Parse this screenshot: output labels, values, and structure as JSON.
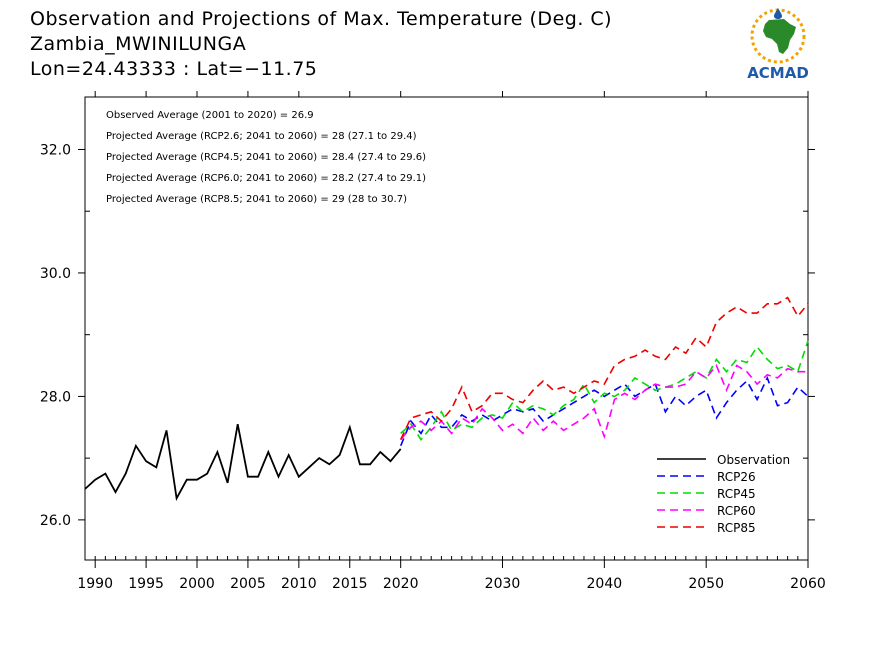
{
  "title": {
    "line1": "Observation and Projections of Max. Temperature (Deg. C)",
    "line2": "Zambia_MWINILUNGA",
    "line3": "Lon=24.43333 : Lat=−11.75"
  },
  "logo": {
    "text": "ACMAD",
    "icon": "africa-map-logo-icon"
  },
  "annotations": [
    "Observed Average (2001 to 2020) = 26.9",
    "Projected Average (RCP2.6; 2041 to 2060) = 28 (27.1 to 29.4)",
    "Projected Average (RCP4.5; 2041 to 2060) = 28.4 (27.4 to 29.6)",
    "Projected Average (RCP6.0; 2041 to 2060) = 28.2 (27.4 to 29.1)",
    "Projected Average (RCP8.5; 2041 to 2060) = 29 (28 to 30.7)"
  ],
  "chart_data": {
    "type": "line",
    "xlim": [
      1989,
      2060
    ],
    "ylim": [
      25.35,
      32.85
    ],
    "xticks": [
      1990,
      1995,
      2000,
      2005,
      2010,
      2015,
      2020,
      2030,
      2040,
      2050,
      2060
    ],
    "yticks": [
      26.0,
      28.0,
      30.0,
      32.0
    ],
    "ytick_labels": [
      "26.0",
      "28.0",
      "30.0",
      "32.0"
    ],
    "legend_position": "bottom-right",
    "series": [
      {
        "name": "Observation",
        "color": "#000000",
        "dashed": false,
        "x": [
          1989,
          1990,
          1991,
          1992,
          1993,
          1994,
          1995,
          1996,
          1997,
          1998,
          1999,
          2000,
          2001,
          2002,
          2003,
          2004,
          2005,
          2006,
          2007,
          2008,
          2009,
          2010,
          2011,
          2012,
          2013,
          2014,
          2015,
          2016,
          2017,
          2018,
          2019,
          2020
        ],
        "y": [
          26.5,
          26.65,
          26.75,
          26.45,
          26.75,
          27.2,
          26.95,
          26.85,
          27.45,
          26.35,
          26.65,
          26.65,
          26.75,
          27.1,
          26.6,
          27.55,
          26.7,
          26.7,
          27.1,
          26.7,
          27.05,
          26.7,
          26.85,
          27.0,
          26.9,
          27.05,
          27.5,
          26.9,
          26.9,
          27.1,
          26.95,
          27.15
        ]
      },
      {
        "name": "RCP26",
        "color": "#0000ff",
        "dashed": true,
        "x": [
          2020,
          2021,
          2022,
          2023,
          2024,
          2025,
          2026,
          2027,
          2028,
          2029,
          2030,
          2031,
          2032,
          2033,
          2034,
          2035,
          2036,
          2037,
          2038,
          2039,
          2040,
          2041,
          2042,
          2043,
          2044,
          2045,
          2046,
          2047,
          2048,
          2049,
          2050,
          2051,
          2052,
          2053,
          2054,
          2055,
          2056,
          2057,
          2058,
          2059,
          2060
        ],
        "y": [
          27.2,
          27.6,
          27.4,
          27.7,
          27.5,
          27.5,
          27.7,
          27.6,
          27.7,
          27.6,
          27.7,
          27.8,
          27.75,
          27.8,
          27.6,
          27.7,
          27.8,
          27.9,
          28.0,
          28.1,
          28.0,
          28.1,
          28.2,
          28.0,
          28.1,
          28.2,
          27.75,
          28.0,
          27.85,
          28.0,
          28.1,
          27.65,
          27.9,
          28.1,
          28.25,
          27.95,
          28.3,
          27.85,
          27.9,
          28.15,
          28.0
        ]
      },
      {
        "name": "RCP45",
        "color": "#00dd00",
        "dashed": true,
        "x": [
          2020,
          2021,
          2022,
          2023,
          2024,
          2025,
          2026,
          2027,
          2028,
          2029,
          2030,
          2031,
          2032,
          2033,
          2034,
          2035,
          2036,
          2037,
          2038,
          2039,
          2040,
          2041,
          2042,
          2043,
          2044,
          2045,
          2046,
          2047,
          2048,
          2049,
          2050,
          2051,
          2052,
          2053,
          2054,
          2055,
          2056,
          2057,
          2058,
          2059,
          2060
        ],
        "y": [
          27.4,
          27.55,
          27.3,
          27.5,
          27.75,
          27.45,
          27.55,
          27.5,
          27.65,
          27.7,
          27.65,
          27.9,
          27.75,
          27.85,
          27.8,
          27.7,
          27.85,
          27.95,
          28.2,
          27.9,
          28.05,
          28.0,
          28.1,
          28.3,
          28.2,
          28.1,
          28.15,
          28.2,
          28.3,
          28.4,
          28.3,
          28.6,
          28.4,
          28.6,
          28.55,
          28.8,
          28.6,
          28.45,
          28.5,
          28.4,
          28.9
        ]
      },
      {
        "name": "RCP60",
        "color": "#ff00ff",
        "dashed": true,
        "x": [
          2020,
          2021,
          2022,
          2023,
          2024,
          2025,
          2026,
          2027,
          2028,
          2029,
          2030,
          2031,
          2032,
          2033,
          2034,
          2035,
          2036,
          2037,
          2038,
          2039,
          2040,
          2041,
          2042,
          2043,
          2044,
          2045,
          2046,
          2047,
          2048,
          2049,
          2050,
          2051,
          2052,
          2053,
          2054,
          2055,
          2056,
          2057,
          2058,
          2059,
          2060
        ],
        "y": [
          27.3,
          27.5,
          27.6,
          27.45,
          27.6,
          27.4,
          27.65,
          27.55,
          27.8,
          27.65,
          27.45,
          27.55,
          27.4,
          27.65,
          27.45,
          27.6,
          27.45,
          27.55,
          27.65,
          27.8,
          27.35,
          27.95,
          28.05,
          27.95,
          28.1,
          28.2,
          28.15,
          28.15,
          28.2,
          28.4,
          28.3,
          28.5,
          28.1,
          28.5,
          28.4,
          28.2,
          28.35,
          28.3,
          28.45,
          28.4,
          28.4
        ]
      },
      {
        "name": "RCP85",
        "color": "#ee0000",
        "dashed": true,
        "x": [
          2020,
          2021,
          2022,
          2023,
          2024,
          2025,
          2026,
          2027,
          2028,
          2029,
          2030,
          2031,
          2032,
          2033,
          2034,
          2035,
          2036,
          2037,
          2038,
          2039,
          2040,
          2041,
          2042,
          2043,
          2044,
          2045,
          2046,
          2047,
          2048,
          2049,
          2050,
          2051,
          2052,
          2053,
          2054,
          2055,
          2056,
          2057,
          2058,
          2059,
          2060
        ],
        "y": [
          27.3,
          27.65,
          27.7,
          27.75,
          27.6,
          27.8,
          28.15,
          27.75,
          27.85,
          28.05,
          28.05,
          27.95,
          27.9,
          28.1,
          28.25,
          28.1,
          28.15,
          28.05,
          28.15,
          28.25,
          28.2,
          28.5,
          28.6,
          28.65,
          28.75,
          28.65,
          28.6,
          28.8,
          28.7,
          28.95,
          28.8,
          29.2,
          29.35,
          29.45,
          29.35,
          29.35,
          29.5,
          29.5,
          29.6,
          29.3,
          29.5
        ]
      }
    ]
  }
}
